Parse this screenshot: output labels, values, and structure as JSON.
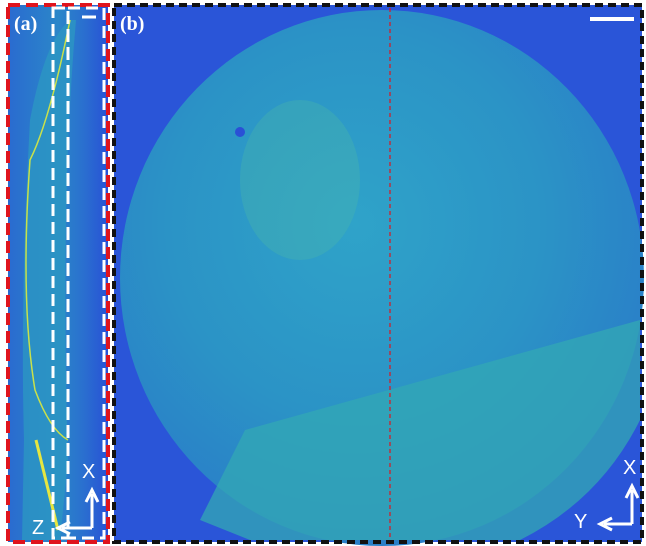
{
  "panels": [
    {
      "label": "(a)",
      "axes": {
        "vertical": "X",
        "horizontal": "Z"
      }
    },
    {
      "label": "(b)",
      "axes": {
        "vertical": "X",
        "horizontal": "Y"
      }
    }
  ]
}
